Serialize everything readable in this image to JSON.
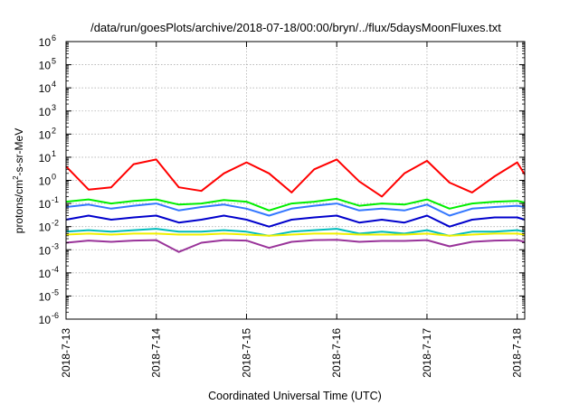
{
  "chart_data": {
    "type": "line",
    "title": "/data/run/goesPlots/archive/2018-07-18/00:00/bryn/../flux/5daysMoonFluxes.txt",
    "xlabel": "Coordinated Universal Time (UTC)",
    "ylabel": "protons/cm²-s-sr-MeV",
    "ylabel_parts": {
      "pre": "protons/cm",
      "sup": "2",
      "post": "-s-sr-MeV"
    },
    "y_scale": "log",
    "ylim": [
      1e-06,
      1000000.0
    ],
    "xlim": [
      "2018-07-13",
      "2018-07-18 02:00"
    ],
    "grid": true,
    "legend": "none",
    "x_ticks": [
      "2018-7-13",
      "2018-7-14",
      "2018-7-15",
      "2018-7-16",
      "2018-7-17",
      "2018-7-18"
    ],
    "y_ticks": [
      {
        "base": "10",
        "exp": "-6"
      },
      {
        "base": "10",
        "exp": "-5"
      },
      {
        "base": "10",
        "exp": "-4"
      },
      {
        "base": "10",
        "exp": "-3"
      },
      {
        "base": "10",
        "exp": "-2"
      },
      {
        "base": "10",
        "exp": "-1"
      },
      {
        "base": "10",
        "exp": "0"
      },
      {
        "base": "10",
        "exp": "1"
      },
      {
        "base": "10",
        "exp": "2"
      },
      {
        "base": "10",
        "exp": "3"
      },
      {
        "base": "10",
        "exp": "4"
      },
      {
        "base": "10",
        "exp": "5"
      },
      {
        "base": "10",
        "exp": "6"
      }
    ],
    "x": [
      "2018-07-13 00:00",
      "2018-07-13 06:00",
      "2018-07-13 12:00",
      "2018-07-13 18:00",
      "2018-07-14 00:00",
      "2018-07-14 06:00",
      "2018-07-14 12:00",
      "2018-07-14 18:00",
      "2018-07-15 00:00",
      "2018-07-15 06:00",
      "2018-07-15 12:00",
      "2018-07-15 18:00",
      "2018-07-16 00:00",
      "2018-07-16 06:00",
      "2018-07-16 12:00",
      "2018-07-16 18:00",
      "2018-07-17 00:00",
      "2018-07-17 06:00",
      "2018-07-17 12:00",
      "2018-07-17 18:00",
      "2018-07-18 00:00",
      "2018-07-18 02:00"
    ],
    "series": [
      {
        "color": "#ff0000",
        "values": [
          4,
          0.4,
          0.5,
          5,
          8,
          0.5,
          0.35,
          2,
          6,
          2,
          0.3,
          3,
          8,
          0.9,
          0.2,
          2,
          7,
          0.8,
          0.3,
          1.5,
          6,
          1.8
        ]
      },
      {
        "color": "#00ee00",
        "values": [
          0.12,
          0.15,
          0.1,
          0.13,
          0.15,
          0.09,
          0.1,
          0.14,
          0.12,
          0.05,
          0.1,
          0.12,
          0.16,
          0.08,
          0.1,
          0.09,
          0.15,
          0.06,
          0.1,
          0.12,
          0.13,
          0.11
        ]
      },
      {
        "color": "#3377ff",
        "values": [
          0.07,
          0.09,
          0.06,
          0.08,
          0.1,
          0.05,
          0.07,
          0.09,
          0.06,
          0.03,
          0.06,
          0.08,
          0.1,
          0.05,
          0.06,
          0.05,
          0.09,
          0.03,
          0.06,
          0.07,
          0.08,
          0.07
        ]
      },
      {
        "color": "#0000cc",
        "values": [
          0.02,
          0.03,
          0.02,
          0.025,
          0.03,
          0.015,
          0.02,
          0.03,
          0.02,
          0.01,
          0.02,
          0.025,
          0.03,
          0.015,
          0.02,
          0.015,
          0.03,
          0.01,
          0.02,
          0.025,
          0.025,
          0.02
        ]
      },
      {
        "color": "#00bbbb",
        "values": [
          0.006,
          0.007,
          0.006,
          0.007,
          0.008,
          0.006,
          0.006,
          0.007,
          0.006,
          0.004,
          0.006,
          0.007,
          0.008,
          0.005,
          0.006,
          0.005,
          0.007,
          0.004,
          0.006,
          0.006,
          0.007,
          0.006
        ]
      },
      {
        "color": "#f0f000",
        "values": [
          0.0045,
          0.005,
          0.0045,
          0.005,
          0.005,
          0.0045,
          0.0045,
          0.005,
          0.0045,
          0.004,
          0.0045,
          0.005,
          0.005,
          0.0045,
          0.0045,
          0.0045,
          0.005,
          0.004,
          0.0045,
          0.005,
          0.005,
          0.0045
        ]
      },
      {
        "color": "#993399",
        "values": [
          0.002,
          0.0025,
          0.0022,
          0.0025,
          0.0026,
          0.0008,
          0.002,
          0.0026,
          0.0025,
          0.0012,
          0.0022,
          0.0026,
          0.0027,
          0.0022,
          0.0024,
          0.0024,
          0.0026,
          0.0014,
          0.0022,
          0.0025,
          0.0026,
          0.0022
        ]
      }
    ]
  }
}
